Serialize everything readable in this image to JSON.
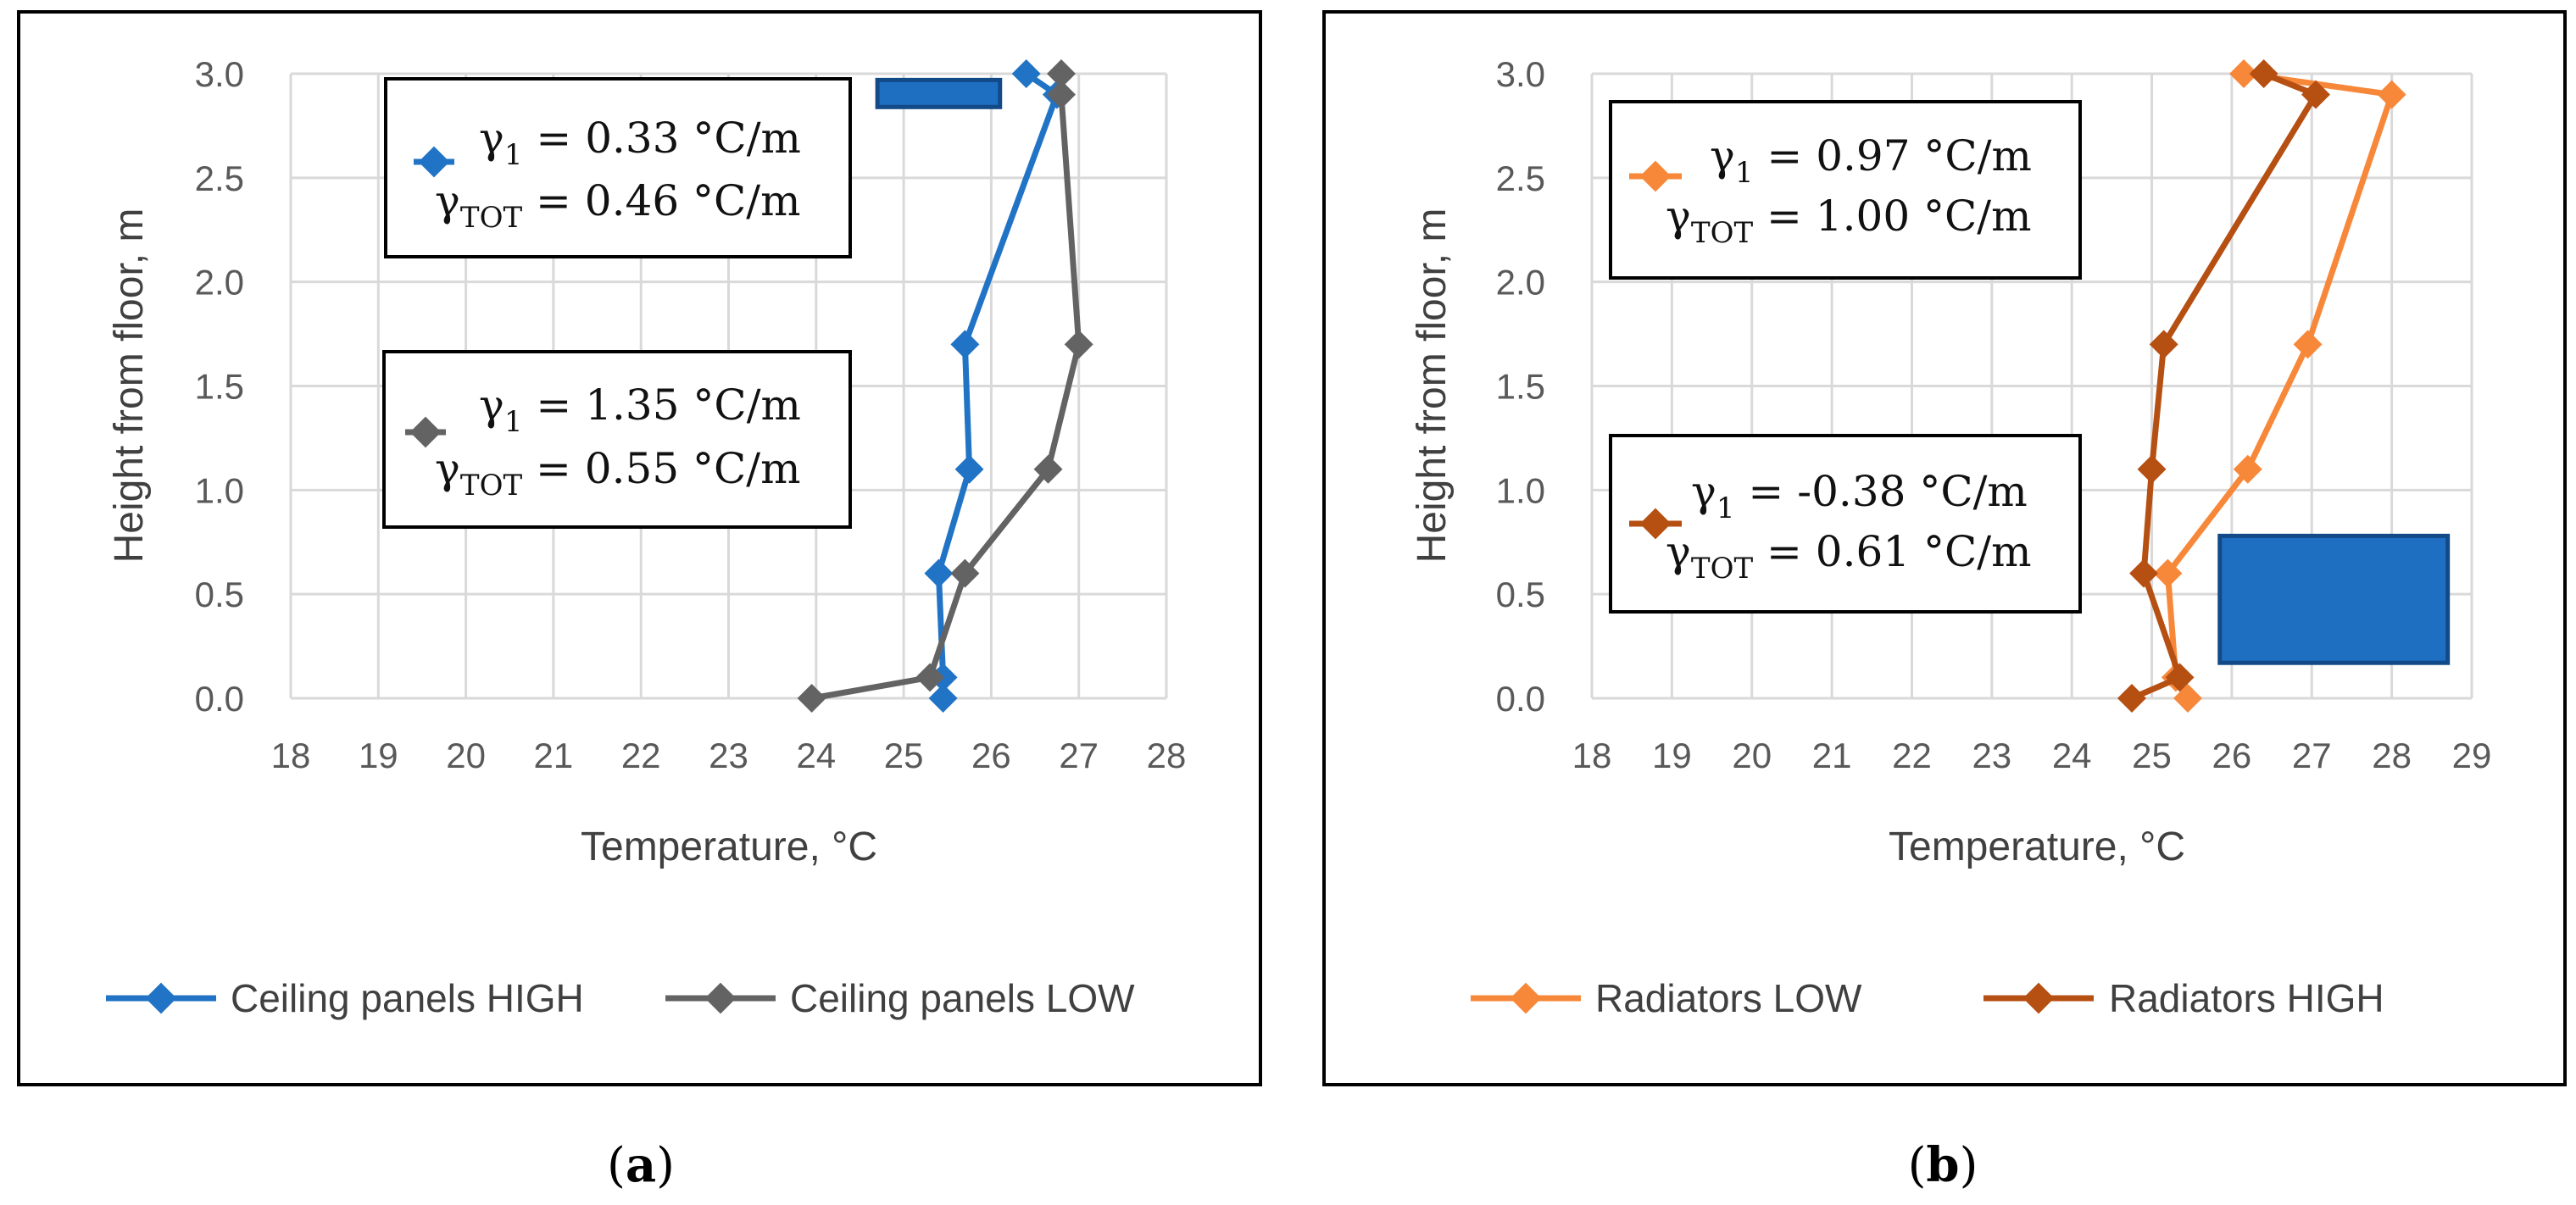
{
  "panels": [
    {
      "id": "a",
      "caption": {
        "open": "(",
        "letter": "a",
        "close": ")"
      },
      "xlabel": "Temperature, °C",
      "ylabel": "Height from floor, m",
      "xlim": [
        18,
        28
      ],
      "ylim": [
        0,
        3
      ],
      "xticks": [
        "18",
        "19",
        "20",
        "21",
        "22",
        "23",
        "24",
        "25",
        "26",
        "27",
        "28"
      ],
      "yticks": [
        "0.0",
        "0.5",
        "1.0",
        "1.5",
        "2.0",
        "2.5",
        "3.0"
      ],
      "series": [
        {
          "name": "Ceiling panels HIGH",
          "color": "#2173C5",
          "points": [
            [
              25.45,
              0.0
            ],
            [
              25.45,
              0.1
            ],
            [
              25.4,
              0.6
            ],
            [
              25.75,
              1.1
            ],
            [
              25.7,
              1.7
            ],
            [
              26.75,
              2.9
            ],
            [
              26.4,
              3.0
            ]
          ]
        },
        {
          "name": "Ceiling panels LOW",
          "color": "#636363",
          "points": [
            [
              23.95,
              0.0
            ],
            [
              25.3,
              0.1
            ],
            [
              25.7,
              0.6
            ],
            [
              26.65,
              1.1
            ],
            [
              27.0,
              1.7
            ],
            [
              26.8,
              2.9
            ],
            [
              26.8,
              3.0
            ]
          ]
        }
      ],
      "annotations": [
        {
          "gamma1": " = 0.33 °C/m",
          "gammaTot": " = 0.46 °C/m",
          "series": 0
        },
        {
          "gamma1": " = 1.35 °C/m",
          "gammaTot": " = 0.55 °C/m",
          "series": 1
        }
      ],
      "shading": {
        "label": "ceiling-panel-block",
        "x": [
          24.7,
          26.1
        ],
        "y": [
          2.84,
          2.97
        ]
      }
    },
    {
      "id": "b",
      "caption": {
        "open": "(",
        "letter": "b",
        "close": ")"
      },
      "xlabel": "Temperature, °C",
      "ylabel": "Height from floor, m",
      "xlim": [
        18,
        29
      ],
      "ylim": [
        0,
        3
      ],
      "xticks": [
        "18",
        "19",
        "20",
        "21",
        "22",
        "23",
        "24",
        "25",
        "26",
        "27",
        "28",
        "29"
      ],
      "yticks": [
        "0.0",
        "0.5",
        "1.0",
        "1.5",
        "2.0",
        "2.5",
        "3.0"
      ],
      "series": [
        {
          "name": "Radiators LOW",
          "color": "#F7883A",
          "points": [
            [
              25.45,
              0.0
            ],
            [
              25.3,
              0.1
            ],
            [
              25.2,
              0.6
            ],
            [
              26.2,
              1.1
            ],
            [
              26.95,
              1.7
            ],
            [
              28.0,
              2.9
            ],
            [
              26.15,
              3.0
            ]
          ]
        },
        {
          "name": "Radiators HIGH",
          "color": "#B64F12",
          "points": [
            [
              24.75,
              0.0
            ],
            [
              25.35,
              0.1
            ],
            [
              24.9,
              0.6
            ],
            [
              25.0,
              1.1
            ],
            [
              25.15,
              1.7
            ],
            [
              27.05,
              2.9
            ],
            [
              26.4,
              3.0
            ]
          ]
        }
      ],
      "annotations": [
        {
          "gamma1": " = 0.97 °C/m",
          "gammaTot": " = 1.00 °C/m",
          "series": 0
        },
        {
          "gamma1": " = -0.38 °C/m",
          "gammaTot": " = 0.61 °C/m",
          "series": 1
        }
      ],
      "shading": {
        "label": "radiator-block",
        "x": [
          25.85,
          28.7
        ],
        "y": [
          0.17,
          0.78
        ]
      }
    }
  ],
  "symbols": {
    "gamma": "γ",
    "sub1": "1",
    "subTot": "TOT"
  },
  "colors": {
    "grid": "#D9D9D9",
    "frame": "#000000",
    "block": "#1E6EC2",
    "blockEdge": "#124A87"
  }
}
